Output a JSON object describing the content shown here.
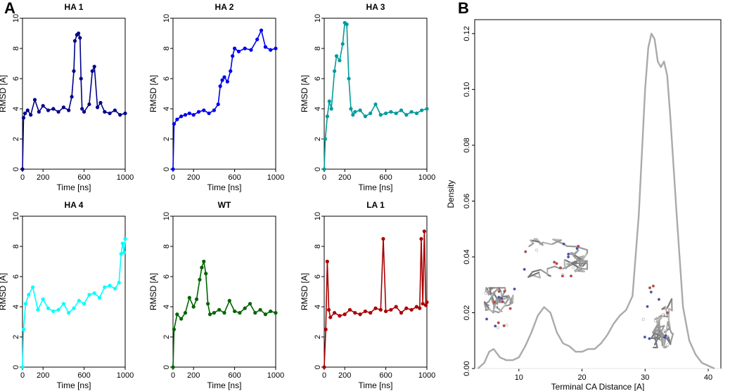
{
  "panels": {
    "A": "A",
    "B": "B"
  },
  "chart_data": [
    {
      "type": "line",
      "title": "HA 1",
      "xlabel": "Time [ns]",
      "ylabel": "RMSD [A]",
      "xlim": [
        0,
        1000
      ],
      "ylim": [
        0,
        10
      ],
      "xticks": [
        0,
        200,
        600,
        1000
      ],
      "yticks": [
        0,
        2,
        4,
        6,
        8,
        10
      ],
      "color": "#00008b",
      "series": [
        {
          "name": "HA 1",
          "x": [
            0,
            10,
            25,
            50,
            80,
            120,
            160,
            200,
            250,
            300,
            350,
            400,
            450,
            480,
            500,
            510,
            530,
            545,
            560,
            570,
            580,
            600,
            650,
            680,
            700,
            730,
            760,
            800,
            850,
            900,
            950,
            1000
          ],
          "y": [
            0,
            3.4,
            3.7,
            3.9,
            3.6,
            4.6,
            3.8,
            4.2,
            3.9,
            4.0,
            3.8,
            4.1,
            3.9,
            4.8,
            6.5,
            8.5,
            8.9,
            9.0,
            8.7,
            6.0,
            4.0,
            3.8,
            4.3,
            6.5,
            6.8,
            4.1,
            4.4,
            3.8,
            3.7,
            3.9,
            3.6,
            3.7
          ]
        }
      ]
    },
    {
      "type": "line",
      "title": "HA 2",
      "xlabel": "Time [ns]",
      "ylabel": "RMSD [A]",
      "xlim": [
        0,
        1000
      ],
      "ylim": [
        0,
        10
      ],
      "xticks": [
        0,
        200,
        600,
        1000
      ],
      "yticks": [
        0,
        2,
        4,
        6,
        8,
        10
      ],
      "color": "#0000ee",
      "series": [
        {
          "name": "HA 2",
          "x": [
            0,
            10,
            40,
            80,
            120,
            160,
            200,
            250,
            300,
            350,
            400,
            440,
            460,
            480,
            500,
            530,
            560,
            580,
            600,
            640,
            700,
            760,
            820,
            860,
            900,
            950,
            1000
          ],
          "y": [
            0,
            3.0,
            3.3,
            3.5,
            3.6,
            3.7,
            3.6,
            3.8,
            3.9,
            3.7,
            3.9,
            4.3,
            5.5,
            5.9,
            6.1,
            5.8,
            6.5,
            7.5,
            8.0,
            7.8,
            8.0,
            7.9,
            8.6,
            9.2,
            8.1,
            7.9,
            8.0
          ]
        }
      ]
    },
    {
      "type": "line",
      "title": "HA 3",
      "xlabel": "Time [ns]",
      "ylabel": "RMSD [A]",
      "xlim": [
        0,
        1000
      ],
      "ylim": [
        0,
        10
      ],
      "xticks": [
        0,
        200,
        600,
        1000
      ],
      "yticks": [
        0,
        2,
        4,
        6,
        8,
        10
      ],
      "color": "#009b9b",
      "series": [
        {
          "name": "HA 3",
          "x": [
            0,
            10,
            30,
            50,
            70,
            100,
            120,
            150,
            180,
            200,
            220,
            240,
            260,
            280,
            300,
            350,
            400,
            450,
            500,
            550,
            600,
            650,
            700,
            750,
            800,
            850,
            900,
            950,
            1000
          ],
          "y": [
            0,
            2.0,
            3.5,
            4.5,
            4.0,
            6.5,
            7.5,
            7.2,
            8.3,
            9.7,
            9.6,
            6.0,
            4.0,
            3.6,
            3.8,
            3.9,
            3.5,
            3.7,
            4.3,
            3.6,
            3.7,
            3.8,
            3.7,
            3.9,
            3.6,
            3.8,
            3.7,
            3.9,
            4.0
          ]
        }
      ]
    },
    {
      "type": "line",
      "title": "HA 4",
      "xlabel": "Time [ns]",
      "ylabel": "RMSD [A]",
      "xlim": [
        0,
        1000
      ],
      "ylim": [
        0,
        10
      ],
      "xticks": [
        0,
        200,
        600,
        1000
      ],
      "yticks": [
        0,
        2,
        4,
        6,
        8,
        10
      ],
      "color": "#00ffff",
      "series": [
        {
          "name": "HA 4",
          "x": [
            0,
            10,
            30,
            60,
            100,
            150,
            200,
            250,
            300,
            350,
            400,
            450,
            500,
            550,
            600,
            650,
            700,
            750,
            800,
            850,
            900,
            940,
            960,
            975,
            990,
            1000
          ],
          "y": [
            0,
            2.5,
            4.2,
            4.8,
            5.3,
            3.8,
            4.5,
            3.9,
            3.7,
            3.8,
            4.2,
            3.6,
            3.9,
            4.4,
            4.2,
            4.8,
            4.9,
            4.6,
            5.3,
            5.4,
            5.2,
            5.6,
            7.5,
            8.2,
            7.6,
            8.5
          ]
        }
      ]
    },
    {
      "type": "line",
      "title": "WT",
      "xlabel": "Time [ns]",
      "ylabel": "RMSD [A]",
      "xlim": [
        0,
        1000
      ],
      "ylim": [
        0,
        10
      ],
      "xticks": [
        0,
        200,
        600,
        1000
      ],
      "yticks": [
        0,
        2,
        4,
        6,
        8,
        10
      ],
      "color": "#006400",
      "series": [
        {
          "name": "WT",
          "x": [
            0,
            10,
            40,
            80,
            120,
            160,
            200,
            230,
            260,
            280,
            300,
            320,
            340,
            360,
            400,
            450,
            500,
            550,
            600,
            650,
            700,
            750,
            800,
            850,
            900,
            950,
            1000
          ],
          "y": [
            0,
            2.5,
            3.5,
            3.2,
            3.6,
            4.6,
            4.0,
            4.5,
            5.8,
            6.6,
            7.0,
            6.2,
            4.2,
            3.5,
            3.6,
            3.8,
            3.6,
            4.4,
            3.7,
            3.6,
            3.9,
            4.2,
            3.6,
            3.8,
            3.5,
            3.7,
            3.6
          ]
        }
      ]
    },
    {
      "type": "line",
      "title": "LA 1",
      "xlabel": "Time [ns]",
      "ylabel": "RMSD [A]",
      "xlim": [
        0,
        1000
      ],
      "ylim": [
        0,
        10
      ],
      "xticks": [
        0,
        200,
        600,
        1000
      ],
      "yticks": [
        0,
        2,
        4,
        6,
        8,
        10
      ],
      "color": "#aa0000",
      "series": [
        {
          "name": "LA 1",
          "x": [
            0,
            15,
            30,
            45,
            60,
            100,
            150,
            200,
            250,
            300,
            350,
            400,
            450,
            500,
            550,
            575,
            600,
            650,
            700,
            750,
            800,
            850,
            900,
            930,
            945,
            960,
            975,
            990,
            1000
          ],
          "y": [
            0,
            2.5,
            7.0,
            3.8,
            3.3,
            3.6,
            3.4,
            3.5,
            3.8,
            3.6,
            3.5,
            3.7,
            3.6,
            3.9,
            3.8,
            8.5,
            3.7,
            3.8,
            4.0,
            3.6,
            3.9,
            3.8,
            4.0,
            3.9,
            8.5,
            4.2,
            9.0,
            4.1,
            4.3
          ]
        }
      ]
    },
    {
      "type": "area",
      "title": "",
      "xlabel": "Terminal CA Distance [A]",
      "ylabel": "Density",
      "xlim": [
        3,
        42
      ],
      "ylim": [
        0,
        0.125
      ],
      "xticks": [
        10,
        20,
        30,
        40
      ],
      "yticks": [
        0.0,
        0.02,
        0.04,
        0.06,
        0.08,
        0.1,
        0.12
      ],
      "ytick_labels": [
        "0.00",
        "0.02",
        "0.04",
        "0.06",
        "0.08",
        "0.10",
        "0.12"
      ],
      "color": "#aaaaaa",
      "series": [
        {
          "name": "Density",
          "x": [
            3.5,
            4.5,
            5.3,
            6.0,
            7.0,
            8.0,
            9.0,
            10.0,
            11.0,
            12.0,
            13.0,
            14.0,
            15.0,
            16.0,
            17.0,
            18.0,
            19.0,
            20.0,
            21.0,
            22.0,
            23.0,
            24.0,
            25.0,
            26.0,
            27.0,
            28.0,
            29.0,
            30.0,
            30.5,
            31.0,
            31.5,
            32.0,
            32.5,
            33.0,
            33.5,
            34.0,
            35.0,
            36.0,
            37.0,
            38.0,
            39.0,
            40.0,
            41.0
          ],
          "y": [
            0.0,
            0.002,
            0.006,
            0.007,
            0.004,
            0.003,
            0.003,
            0.004,
            0.008,
            0.013,
            0.019,
            0.022,
            0.02,
            0.013,
            0.009,
            0.008,
            0.006,
            0.006,
            0.007,
            0.007,
            0.009,
            0.012,
            0.016,
            0.019,
            0.021,
            0.026,
            0.055,
            0.1,
            0.115,
            0.12,
            0.118,
            0.11,
            0.108,
            0.11,
            0.105,
            0.09,
            0.055,
            0.022,
            0.01,
            0.005,
            0.002,
            0.001,
            0.0
          ]
        }
      ]
    }
  ]
}
